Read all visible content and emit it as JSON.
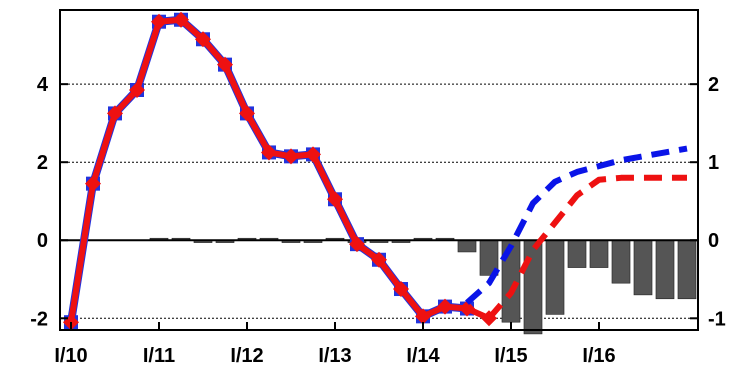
{
  "chart_data": {
    "type": "line",
    "title": "",
    "xlabel": "",
    "ylabel_left": "",
    "ylabel_right": "",
    "grid": "horizontal dotted",
    "legend": "none",
    "x_tick_labels": [
      "I/10",
      "I/11",
      "I/12",
      "I/13",
      "I/14",
      "I/15",
      "I/16"
    ],
    "x_tick_quarters": [
      0,
      4,
      8,
      12,
      16,
      20,
      24
    ],
    "x_range_quarters": [
      -0.5,
      28.5
    ],
    "y_left": {
      "range": [
        -2.3,
        5.9
      ],
      "ticks": [
        -2,
        0,
        2,
        4
      ],
      "tick_labels": [
        "-2",
        "0",
        "2",
        "4"
      ]
    },
    "y_right": {
      "range": [
        -1.15,
        2.95
      ],
      "ticks": [
        -1,
        0,
        1,
        2
      ],
      "tick_labels": [
        "-1",
        "0",
        "1",
        "2"
      ]
    },
    "series": [
      {
        "axis": "left",
        "style": "solid-marker",
        "color": "#2233dd",
        "x": [
          0,
          1,
          2,
          3,
          4,
          5,
          6,
          7,
          8,
          9,
          10,
          11,
          12,
          13,
          14,
          15,
          16,
          17,
          18
        ],
        "values": [
          -2.1,
          1.45,
          3.25,
          3.85,
          5.6,
          5.65,
          5.15,
          4.5,
          3.25,
          2.25,
          2.15,
          2.2,
          1.05,
          -0.1,
          -0.5,
          -1.25,
          -1.95,
          -1.7,
          -1.75
        ]
      },
      {
        "axis": "left",
        "style": "solid-marker",
        "color": "#ee1111",
        "x": [
          0,
          1,
          2,
          3,
          4,
          5,
          6,
          7,
          8,
          9,
          10,
          11,
          12,
          13,
          14,
          15,
          16,
          17,
          18,
          19
        ],
        "values": [
          -2.1,
          1.45,
          3.25,
          3.85,
          5.6,
          5.65,
          5.15,
          4.5,
          3.25,
          2.25,
          2.15,
          2.2,
          1.05,
          -0.1,
          -0.5,
          -1.25,
          -1.95,
          -1.7,
          -1.75,
          -2.0
        ]
      },
      {
        "axis": "left",
        "style": "dashed",
        "color": "#0a14e8",
        "x": [
          18,
          19,
          20,
          21,
          22,
          23,
          24,
          25,
          26,
          27,
          28
        ],
        "values": [
          -1.6,
          -1.1,
          -0.15,
          0.95,
          1.5,
          1.75,
          1.9,
          2.05,
          2.15,
          2.25,
          2.35
        ]
      },
      {
        "axis": "left",
        "style": "dashed",
        "color": "#ee1111",
        "x": [
          19,
          20,
          21,
          22,
          23,
          24,
          25,
          26,
          27,
          28
        ],
        "values": [
          -2.0,
          -1.35,
          -0.25,
          0.45,
          1.15,
          1.55,
          1.6,
          1.6,
          1.6,
          1.6
        ]
      }
    ],
    "bars": {
      "axis": "right",
      "color": "#555555",
      "x": [
        4,
        5,
        6,
        7,
        8,
        9,
        10,
        11,
        12,
        13,
        14,
        15,
        16,
        17,
        18,
        19,
        20,
        21,
        22,
        23,
        24,
        25,
        26,
        27,
        28
      ],
      "values": [
        0,
        0.02,
        -0.03,
        -0.03,
        0,
        0.02,
        -0.03,
        -0.03,
        0,
        -0.03,
        -0.03,
        -0.03,
        0,
        0,
        -0.15,
        -0.45,
        -1.05,
        -1.2,
        -0.95,
        -0.35,
        -0.35,
        -0.55,
        -0.7,
        -0.75,
        -0.75
      ]
    }
  }
}
